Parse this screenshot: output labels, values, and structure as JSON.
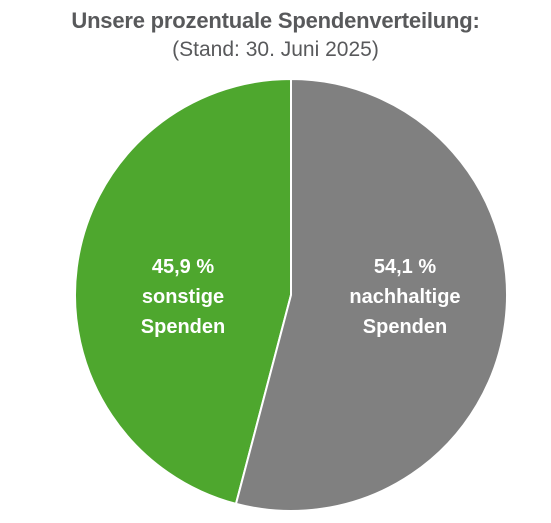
{
  "chart_data": {
    "type": "pie",
    "title": "Unsere prozentuale Spendenverteilung:",
    "subtitle": "(Stand: 30. Juni 2025)",
    "slices": [
      {
        "label": "sonstige Spenden",
        "value": 45.9,
        "value_label": "45,9 %",
        "name_lines": [
          "sonstige",
          "Spenden"
        ],
        "color": "#4ea72e"
      },
      {
        "label": "nachhaltige Spenden",
        "value": 54.1,
        "value_label": "54,1 %",
        "name_lines": [
          "nachhaltige",
          "Spenden"
        ],
        "color": "#808080"
      }
    ],
    "grid": false,
    "legend": "none"
  }
}
